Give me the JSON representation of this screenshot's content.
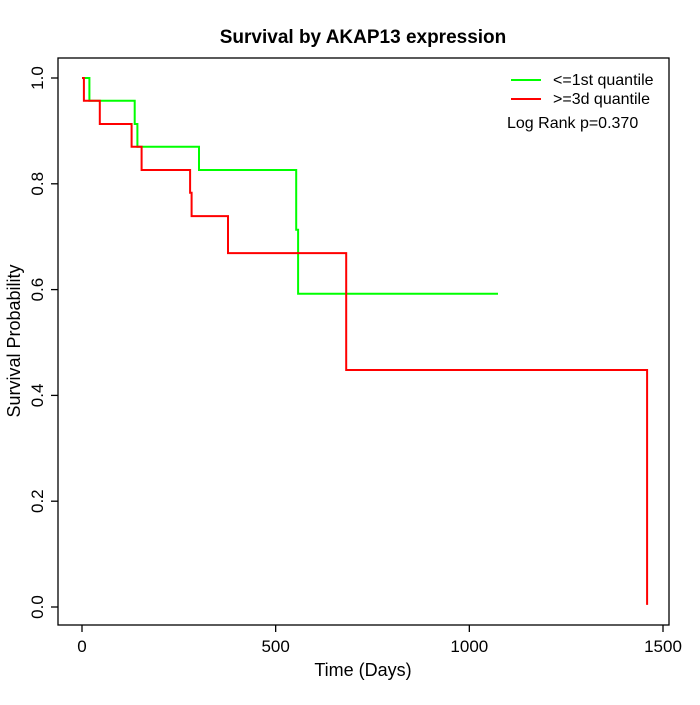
{
  "title": "Survival by AKAP13 expression",
  "legend": {
    "items": [
      {
        "label": "<=1st quantile",
        "color": "#00ff00"
      },
      {
        "label": ">=3d quantile",
        "color": "#ff0000"
      }
    ],
    "annotation": "Log Rank p=0.370"
  },
  "chart_data": {
    "type": "line",
    "subtype": "kaplan-meier-step-survival",
    "title": "Survival by AKAP13 expression",
    "xlabel": "Time (Days)",
    "ylabel": "Survival Probability",
    "xlim": [
      0,
      1500
    ],
    "ylim": [
      0,
      1
    ],
    "xticks": [
      0,
      500,
      1000,
      1500
    ],
    "yticks": [
      0,
      0.2,
      0.4,
      0.6,
      0.8,
      1
    ],
    "grid": false,
    "legend_position": "top-right",
    "annotation": "Log Rank p=0.370",
    "series": [
      {
        "name": "<=1st quantile",
        "color": "#00ff00",
        "steps": [
          [
            0,
            1.0
          ],
          [
            19,
            0.957
          ],
          [
            136,
            0.913
          ],
          [
            143,
            0.87
          ],
          [
            302,
            0.826
          ],
          [
            553,
            0.713
          ],
          [
            558,
            0.592
          ]
        ],
        "end_time": 1074
      },
      {
        "name": ">=3d quantile",
        "color": "#ff0000",
        "steps": [
          [
            0,
            1.0
          ],
          [
            5,
            0.957
          ],
          [
            46,
            0.913
          ],
          [
            128,
            0.87
          ],
          [
            154,
            0.826
          ],
          [
            279,
            0.783
          ],
          [
            283,
            0.739
          ],
          [
            377,
            0.669
          ],
          [
            682,
            0.448
          ],
          [
            1459,
            0.004
          ]
        ],
        "end_time": 1459
      }
    ]
  }
}
